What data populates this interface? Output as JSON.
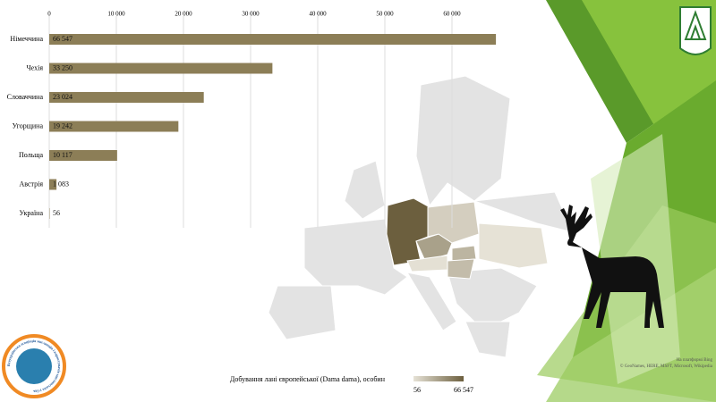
{
  "chart_data": {
    "type": "bar",
    "orientation": "horizontal",
    "categories": [
      "Німеччина",
      "Чехія",
      "Словаччина",
      "Угорщина",
      "Польща",
      "Австрія",
      "Україна"
    ],
    "values": [
      66547,
      33250,
      23024,
      19242,
      10117,
      1083,
      56
    ],
    "value_labels": [
      "66 547",
      "33 250",
      "23 024",
      "19 242",
      "10 117",
      "1 083",
      "56"
    ],
    "color": "#8c7e57",
    "xlim": [
      0,
      70000
    ],
    "xticks": [
      0,
      {
        "value": 10000,
        "label": "10 000"
      },
      {
        "value": 20000,
        "label": "20 000"
      },
      {
        "value": 30000,
        "label": "30 000"
      },
      {
        "value": 40000,
        "label": "40 000"
      },
      {
        "value": 50000,
        "label": "50 000"
      },
      {
        "value": 60000,
        "label": "60 000"
      }
    ],
    "grid": true
  },
  "map": {
    "legend_title": "Добування лані європейської (Dama dama), особин",
    "legend_ticks": [
      56,
      {
        "value": 66547,
        "label": "66 547"
      }
    ],
    "low_color": "#e6e2d6",
    "high_color": "#6c5f3e",
    "credit_platform": "На платформі Bing",
    "credit_sources": "© GeoNames, HERE, MSFT, Microsoft, Wikipedia"
  },
  "logo": {
    "text": "Всеукраїнська асоціація мисливців і користувачів мисливських угідь"
  }
}
